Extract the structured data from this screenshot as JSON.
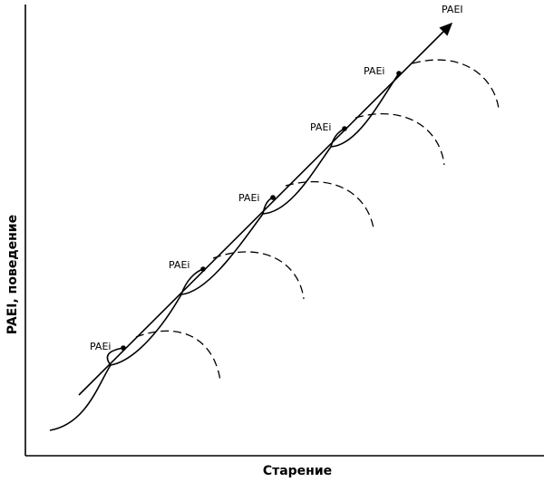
{
  "axes": {
    "x_label": "Старение",
    "y_label": "PAEI, поведение"
  },
  "arrow_label": "PAEI",
  "nodes": [
    {
      "label": "PAEi"
    },
    {
      "label": "PAEi"
    },
    {
      "label": "PAEi"
    },
    {
      "label": "PAEi"
    },
    {
      "label": "PAEi"
    }
  ]
}
